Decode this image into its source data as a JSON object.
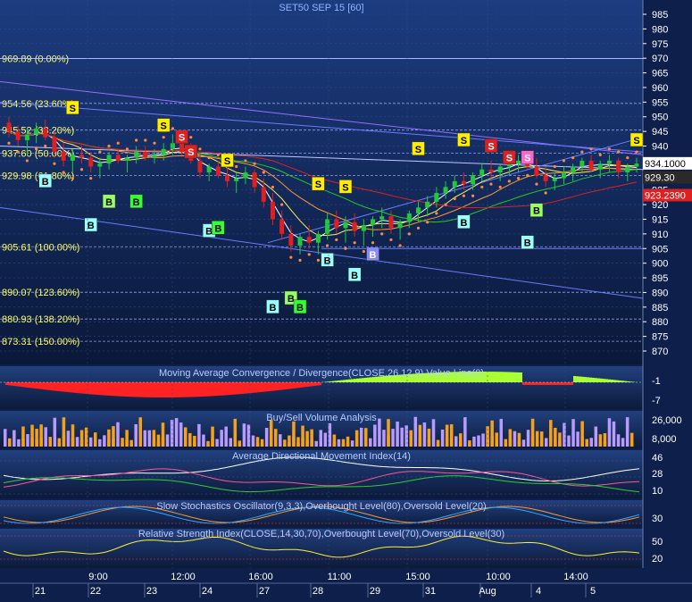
{
  "title": "SET50 SEP 15   [60]",
  "colors": {
    "bg_top": "#1b3a7a",
    "bg_bottom": "#08152f",
    "up": "#22c83a",
    "down": "#e02020",
    "fib": "#ffff66",
    "axis_text": "#ffffff",
    "volume_buy": "#f5a21b",
    "volume_sell": "#b79bff"
  },
  "price_axis": {
    "ticks": [
      "985",
      "980",
      "975",
      "970",
      "965",
      "960",
      "955",
      "950",
      "945",
      "940",
      "935",
      "930",
      "925",
      "920",
      "915",
      "910",
      "905",
      "900",
      "895",
      "890",
      "885",
      "880",
      "875",
      "870"
    ]
  },
  "fib_levels": [
    {
      "label": "969.89 (0.00%)",
      "value": 969.89
    },
    {
      "label": "954.56 (23.60%)",
      "value": 954.56
    },
    {
      "label": "945.52 (38.20%)",
      "value": 945.52
    },
    {
      "label": "937.60 (50.00%)",
      "value": 937.6
    },
    {
      "label": "929.98 (61.80%)",
      "value": 929.98
    },
    {
      "label": "905.61 (100.00%)",
      "value": 905.61
    },
    {
      "label": "890.07 (123.60%)",
      "value": 890.07
    },
    {
      "label": "880.93 (138.20%)",
      "value": 880.93
    },
    {
      "label": "873.31 (150.00%)",
      "value": 873.31
    }
  ],
  "price_tags": [
    {
      "label": "934.1000",
      "value": 934.1,
      "bg": "#ffffff",
      "fg": "#000000"
    },
    {
      "label": "929.30",
      "value": 929.3,
      "bg": "#2a2a2a",
      "fg": "#ffffff"
    },
    {
      "label": "923.2390",
      "value": 923.239,
      "bg": "#e02020",
      "fg": "#ffffff"
    }
  ],
  "chart_data": {
    "type": "candlestick",
    "symbol": "SET50 SEP 15",
    "interval": "[60]",
    "ylim": [
      866,
      988
    ],
    "candles": [
      [
        948,
        950,
        943,
        945
      ],
      [
        945,
        947,
        940,
        942
      ],
      [
        942,
        946,
        937,
        944
      ],
      [
        944,
        948,
        941,
        946
      ],
      [
        946,
        949,
        942,
        943
      ],
      [
        943,
        945,
        936,
        938
      ],
      [
        938,
        941,
        933,
        935
      ],
      [
        935,
        939,
        931,
        937
      ],
      [
        937,
        940,
        934,
        936
      ],
      [
        936,
        938,
        931,
        933
      ],
      [
        933,
        936,
        929,
        934
      ],
      [
        934,
        938,
        932,
        937
      ],
      [
        937,
        939,
        934,
        935
      ],
      [
        935,
        937,
        931,
        936
      ],
      [
        936,
        940,
        934,
        938
      ],
      [
        938,
        940,
        935,
        936
      ],
      [
        936,
        939,
        934,
        937
      ],
      [
        937,
        941,
        935,
        939
      ],
      [
        939,
        944,
        937,
        941
      ],
      [
        941,
        943,
        937,
        938
      ],
      [
        938,
        941,
        934,
        935
      ],
      [
        935,
        937,
        929,
        931
      ],
      [
        931,
        934,
        928,
        933
      ],
      [
        933,
        935,
        929,
        930
      ],
      [
        930,
        933,
        926,
        928
      ],
      [
        928,
        931,
        924,
        929
      ],
      [
        929,
        933,
        927,
        931
      ],
      [
        931,
        932,
        924,
        926
      ],
      [
        926,
        929,
        919,
        921
      ],
      [
        921,
        924,
        913,
        915
      ],
      [
        915,
        918,
        908,
        910
      ],
      [
        910,
        913,
        904,
        906
      ],
      [
        906,
        910,
        903,
        909
      ],
      [
        909,
        913,
        905,
        907
      ],
      [
        907,
        911,
        903,
        910
      ],
      [
        910,
        917,
        908,
        915
      ],
      [
        915,
        918,
        910,
        912
      ],
      [
        912,
        916,
        907,
        914
      ],
      [
        914,
        917,
        909,
        911
      ],
      [
        911,
        915,
        906,
        913
      ],
      [
        913,
        916,
        909,
        915
      ],
      [
        915,
        919,
        912,
        916
      ],
      [
        916,
        918,
        910,
        912
      ],
      [
        912,
        915,
        908,
        914
      ],
      [
        914,
        918,
        912,
        917
      ],
      [
        917,
        921,
        914,
        919
      ],
      [
        919,
        923,
        916,
        921
      ],
      [
        921,
        926,
        919,
        924
      ],
      [
        924,
        928,
        922,
        926
      ],
      [
        926,
        930,
        924,
        928
      ],
      [
        928,
        931,
        925,
        927
      ],
      [
        927,
        931,
        925,
        930
      ],
      [
        930,
        934,
        928,
        932
      ],
      [
        932,
        935,
        929,
        931
      ],
      [
        931,
        934,
        928,
        933
      ],
      [
        933,
        936,
        930,
        934
      ],
      [
        934,
        937,
        931,
        935
      ],
      [
        935,
        938,
        932,
        933
      ],
      [
        933,
        936,
        929,
        930
      ],
      [
        930,
        933,
        926,
        928
      ],
      [
        928,
        931,
        925,
        929
      ],
      [
        929,
        933,
        927,
        931
      ],
      [
        931,
        934,
        928,
        933
      ],
      [
        933,
        936,
        931,
        935
      ],
      [
        935,
        937,
        931,
        932
      ],
      [
        932,
        935,
        929,
        934
      ],
      [
        934,
        937,
        931,
        935
      ],
      [
        935,
        936,
        929,
        931
      ],
      [
        931,
        934,
        928,
        933
      ],
      [
        933,
        936,
        931,
        934
      ]
    ],
    "x_tick_labels": [
      "9:00",
      "12:00",
      "16:00",
      "11:00",
      "15:00",
      "10:00",
      "14:00"
    ],
    "date_labels": [
      "21",
      "22",
      "23",
      "24",
      "27",
      "28",
      "29",
      "31",
      "Aug",
      "4",
      "5"
    ],
    "signals": [
      {
        "label": "S",
        "index": 7,
        "value": 953,
        "color": "#ffee00"
      },
      {
        "label": "S",
        "index": 17,
        "value": 947,
        "color": "#ffee00"
      },
      {
        "label": "S",
        "index": 19,
        "value": 943,
        "color": "#e02020"
      },
      {
        "label": "S",
        "index": 20,
        "value": 938,
        "color": "#e02020"
      },
      {
        "label": "S",
        "index": 24,
        "value": 935,
        "color": "#ffee00"
      },
      {
        "label": "S",
        "index": 34,
        "value": 927,
        "color": "#ffee00"
      },
      {
        "label": "S",
        "index": 37,
        "value": 926,
        "color": "#ffee00"
      },
      {
        "label": "S",
        "index": 45,
        "value": 939,
        "color": "#ffee00"
      },
      {
        "label": "S",
        "index": 50,
        "value": 942,
        "color": "#ffee00"
      },
      {
        "label": "S",
        "index": 53,
        "value": 940,
        "color": "#e02020"
      },
      {
        "label": "S",
        "index": 55,
        "value": 936,
        "color": "#e02020"
      },
      {
        "label": "S",
        "index": 57,
        "value": 936,
        "color": "#ff66cc"
      },
      {
        "label": "S",
        "index": 69,
        "value": 942,
        "color": "#ffee00"
      },
      {
        "label": "B",
        "index": 4,
        "value": 928,
        "color": "#99ffff"
      },
      {
        "label": "B",
        "index": 9,
        "value": 913,
        "color": "#99ffff"
      },
      {
        "label": "B",
        "index": 11,
        "value": 921,
        "color": "#99ff66"
      },
      {
        "label": "B",
        "index": 14,
        "value": 921,
        "color": "#33ff33"
      },
      {
        "label": "B",
        "index": 22,
        "value": 911,
        "color": "#99ffff"
      },
      {
        "label": "B",
        "index": 23,
        "value": 912,
        "color": "#33ff33"
      },
      {
        "label": "B",
        "index": 29,
        "value": 885,
        "color": "#99ffff"
      },
      {
        "label": "B",
        "index": 31,
        "value": 888,
        "color": "#99ff66"
      },
      {
        "label": "B",
        "index": 32,
        "value": 885,
        "color": "#33ff33"
      },
      {
        "label": "B",
        "index": 35,
        "value": 901,
        "color": "#99ffff"
      },
      {
        "label": "B",
        "index": 38,
        "value": 896,
        "color": "#99ffff"
      },
      {
        "label": "B",
        "index": 40,
        "value": 903,
        "color": "#8888ff"
      },
      {
        "label": "B",
        "index": 50,
        "value": 914,
        "color": "#99ffff"
      },
      {
        "label": "B",
        "index": 57,
        "value": 907,
        "color": "#99ffff"
      },
      {
        "label": "B",
        "index": 58,
        "value": 918,
        "color": "#99ff66"
      }
    ]
  },
  "panels": {
    "macd": {
      "label": "Moving Average Convergence / Divergence(CLOSE,26,12,9),Value Line(0)",
      "ticks": [
        "-1",
        "-7"
      ]
    },
    "volume": {
      "label": "Buy/Sell Volume Analysis",
      "ticks": [
        "26,000",
        "8,000"
      ]
    },
    "adx": {
      "label": "Average Directional Movement Index(14)",
      "ticks": [
        "46",
        "28",
        "10"
      ]
    },
    "stoch": {
      "label": "Slow Stochastics Oscillator(9,3,3),Overbought Level(80),Oversold Level(20)",
      "ticks": [
        "30"
      ]
    },
    "rsi": {
      "label": "Relative Strength Index(CLOSE,14,30,70),Overbought Level(70),Oversold Level(30)",
      "ticks": [
        "50",
        "20"
      ]
    }
  }
}
